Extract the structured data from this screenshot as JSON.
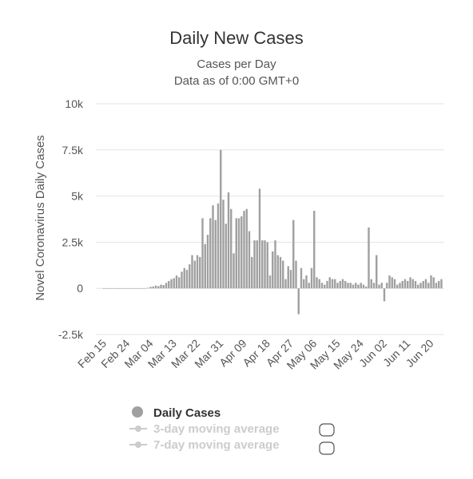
{
  "chart_data": {
    "type": "bar",
    "title": "Daily New Cases",
    "subtitle": [
      "Cases per Day",
      "Data as of 0:00 GMT+0"
    ],
    "y_label": "Novel Coronavirus Daily Cases",
    "categories": [
      "Feb 15",
      null,
      null,
      null,
      null,
      null,
      null,
      null,
      null,
      "Feb 24",
      null,
      null,
      null,
      null,
      null,
      null,
      null,
      null,
      "Mar 04",
      null,
      null,
      null,
      null,
      null,
      null,
      null,
      null,
      "Mar 13",
      null,
      null,
      null,
      null,
      null,
      null,
      null,
      null,
      "Mar 22",
      null,
      null,
      null,
      null,
      null,
      null,
      null,
      null,
      "Mar 31",
      null,
      null,
      null,
      null,
      null,
      null,
      null,
      null,
      "Apr 09",
      null,
      null,
      null,
      null,
      null,
      null,
      null,
      null,
      "Apr 18",
      null,
      null,
      null,
      null,
      null,
      null,
      null,
      null,
      "Apr 27",
      null,
      null,
      null,
      null,
      null,
      null,
      null,
      null,
      "May 06",
      null,
      null,
      null,
      null,
      null,
      null,
      null,
      null,
      "May 15",
      null,
      null,
      null,
      null,
      null,
      null,
      null,
      null,
      "May 24",
      null,
      null,
      null,
      null,
      null,
      null,
      null,
      null,
      "Jun 02",
      null,
      null,
      null,
      null,
      null,
      null,
      null,
      null,
      "Jun 11",
      null,
      null,
      null,
      null,
      null,
      null,
      null,
      null,
      "Jun 20",
      null,
      null,
      null,
      null
    ],
    "series": [
      {
        "name": "Daily Cases",
        "color": "#a0a0a0",
        "values": [
          0,
          0,
          0,
          0,
          0,
          0,
          0,
          0,
          0,
          0,
          0,
          0,
          0,
          0,
          0,
          0,
          0,
          30,
          80,
          100,
          150,
          120,
          200,
          180,
          300,
          400,
          500,
          550,
          700,
          600,
          900,
          1100,
          1000,
          1300,
          1800,
          1500,
          1800,
          1700,
          3800,
          2400,
          2900,
          3800,
          4500,
          3700,
          4600,
          7500,
          4800,
          3500,
          5200,
          4300,
          1900,
          3800,
          3800,
          3900,
          4200,
          4300,
          3100,
          1700,
          2600,
          2600,
          5400,
          2600,
          2600,
          2500,
          700,
          2000,
          2600,
          1800,
          1700,
          1500,
          500,
          1200,
          1000,
          3700,
          1500,
          -1400,
          1100,
          500,
          700,
          300,
          1100,
          4200,
          600,
          500,
          300,
          200,
          400,
          600,
          500,
          500,
          300,
          400,
          500,
          400,
          300,
          300,
          200,
          300,
          200,
          300,
          200,
          100,
          3300,
          500,
          300,
          1800,
          200,
          300,
          -700,
          300,
          700,
          600,
          500,
          200,
          300,
          400,
          500,
          400,
          600,
          500,
          400,
          200,
          300,
          400,
          500,
          300,
          700,
          600,
          300,
          400,
          500
        ]
      }
    ],
    "legend_inactive": [
      "3-day moving average",
      "7-day moving average"
    ],
    "ylim": [
      -2500,
      10000
    ],
    "yticks": [
      {
        "value": -2500,
        "label": "-2.5k"
      },
      0,
      {
        "value": 2500,
        "label": "2.5k"
      },
      {
        "value": 5000,
        "label": "5k"
      },
      {
        "value": 7500,
        "label": "7.5k"
      },
      {
        "value": 10000,
        "label": "10k"
      }
    ],
    "grid": true
  }
}
